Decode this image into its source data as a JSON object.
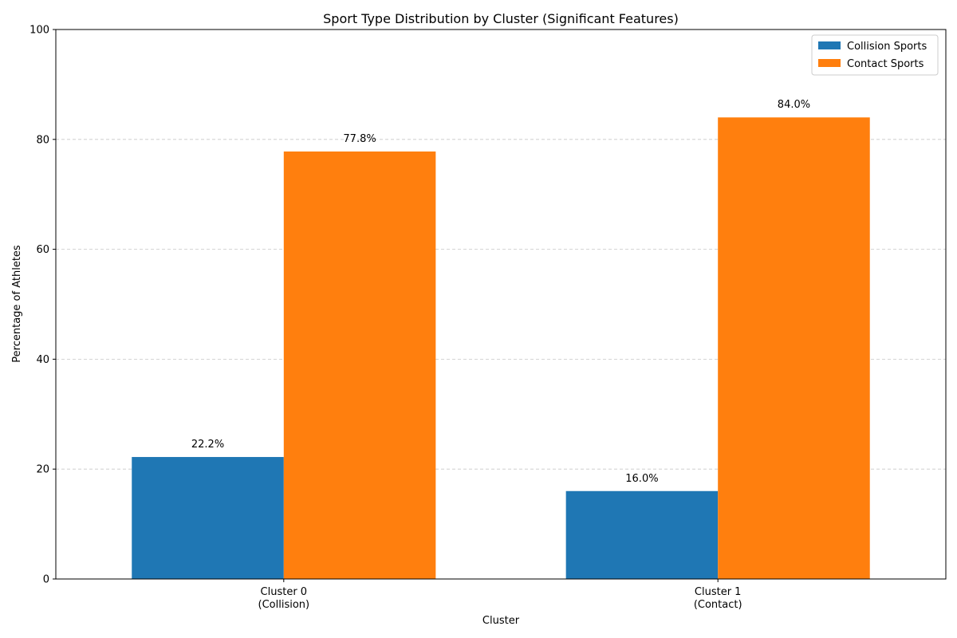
{
  "chart_data": {
    "type": "bar",
    "title": "Sport Type Distribution by Cluster (Significant Features)",
    "xlabel": "Cluster",
    "ylabel": "Percentage of Athletes",
    "categories": [
      "Cluster 0\n(Collision)",
      "Cluster 1\n(Contact)"
    ],
    "series": [
      {
        "name": "Collision Sports",
        "values": [
          22.2,
          16.0
        ],
        "color": "#1f77b4"
      },
      {
        "name": "Contact Sports",
        "values": [
          77.8,
          84.0
        ],
        "color": "#ff7f0e"
      }
    ],
    "data_labels": [
      [
        "22.2%",
        "16.0%"
      ],
      [
        "77.8%",
        "84.0%"
      ]
    ],
    "ylim": [
      0,
      100
    ],
    "yticks": [
      0,
      20,
      40,
      60,
      80,
      100
    ],
    "grid": "y-dashed",
    "legend_position": "top-right"
  }
}
